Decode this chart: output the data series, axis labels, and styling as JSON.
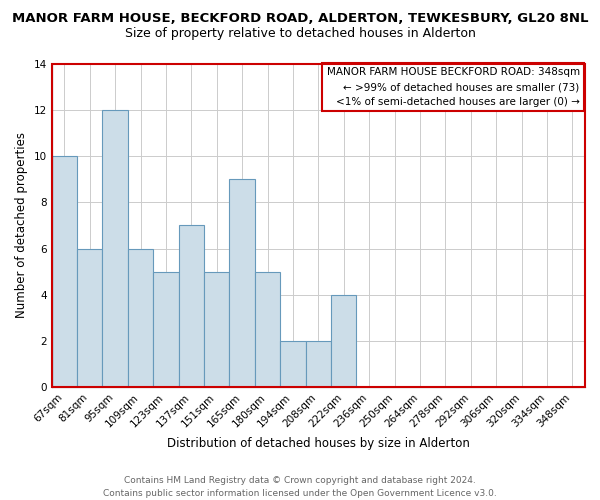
{
  "title": "MANOR FARM HOUSE, BECKFORD ROAD, ALDERTON, TEWKESBURY, GL20 8NL",
  "subtitle": "Size of property relative to detached houses in Alderton",
  "xlabel": "Distribution of detached houses by size in Alderton",
  "ylabel": "Number of detached properties",
  "categories": [
    "67sqm",
    "81sqm",
    "95sqm",
    "109sqm",
    "123sqm",
    "137sqm",
    "151sqm",
    "165sqm",
    "180sqm",
    "194sqm",
    "208sqm",
    "222sqm",
    "236sqm",
    "250sqm",
    "264sqm",
    "278sqm",
    "292sqm",
    "306sqm",
    "320sqm",
    "334sqm",
    "348sqm"
  ],
  "values": [
    10,
    6,
    12,
    6,
    5,
    7,
    5,
    9,
    5,
    2,
    2,
    4,
    0,
    0,
    0,
    0,
    0,
    0,
    0,
    0,
    0
  ],
  "bar_color": "#ccdde8",
  "bar_edge_color": "#6699bb",
  "ylim": [
    0,
    14
  ],
  "yticks": [
    0,
    2,
    4,
    6,
    8,
    10,
    12,
    14
  ],
  "legend_title": "MANOR FARM HOUSE BECKFORD ROAD: 348sqm",
  "legend_line1": "← >99% of detached houses are smaller (73)",
  "legend_line2": "<1% of semi-detached houses are larger (0) →",
  "legend_box_color": "#ffffff",
  "legend_box_edge_color": "#cc0000",
  "footer_line1": "Contains HM Land Registry data © Crown copyright and database right 2024.",
  "footer_line2": "Contains public sector information licensed under the Open Government Licence v3.0.",
  "background_color": "#ffffff",
  "grid_color": "#cccccc",
  "title_fontsize": 9.5,
  "subtitle_fontsize": 9.0,
  "axis_label_fontsize": 8.5,
  "tick_fontsize": 7.5,
  "footer_fontsize": 6.5,
  "legend_fontsize": 7.5
}
